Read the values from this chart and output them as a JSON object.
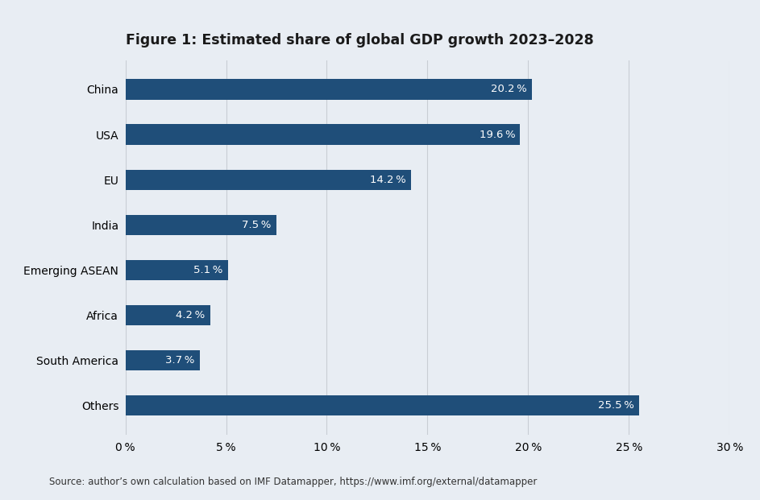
{
  "title": "Figure 1: Estimated share of global GDP growth 2023–2028",
  "categories": [
    "China",
    "USA",
    "EU",
    "India",
    "Emerging ASEAN",
    "Africa",
    "South America",
    "Others"
  ],
  "values": [
    20.2,
    19.6,
    14.2,
    7.5,
    5.1,
    4.2,
    3.7,
    25.5
  ],
  "labels": [
    "20.2 %",
    "19.6 %",
    "14.2 %",
    "7.5 %",
    "5.1 %",
    "4.2 %",
    "3.7 %",
    "25.5 %"
  ],
  "bar_color": "#1F4E79",
  "label_color": "#ffffff",
  "background_color": "#e8edf3",
  "title_fontsize": 12.5,
  "label_fontsize": 9.5,
  "tick_fontsize": 10,
  "source_text": "Source: author’s own calculation based on IMF Datamapper, https://www.imf.org/external/datamapper",
  "xlim": [
    0,
    30
  ],
  "xticks": [
    0,
    5,
    10,
    15,
    20,
    25,
    30
  ],
  "xtick_labels": [
    "0 %",
    "5 %",
    "10 %",
    "15 %",
    "20 %",
    "25 %",
    "30 %"
  ],
  "grid_color": "#c8cdd4",
  "bar_height": 0.45
}
